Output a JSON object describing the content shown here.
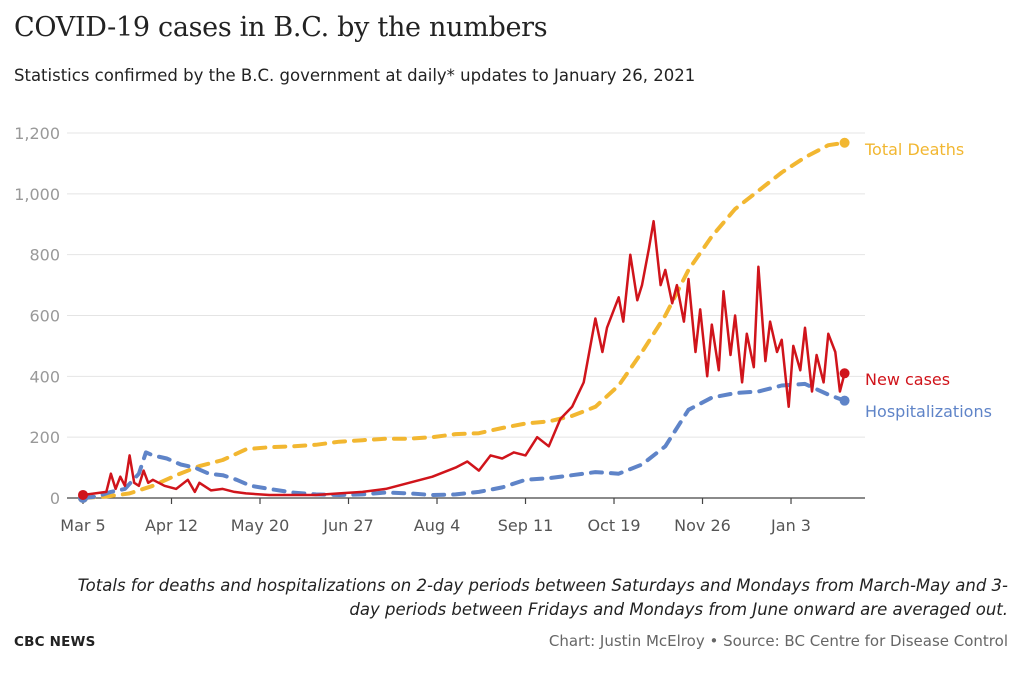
{
  "header": {
    "title": "COVID-19 cases in B.C. by the numbers",
    "subtitle": "Statistics confirmed by the B.C. government at daily* updates to January 26, 2021"
  },
  "footer": {
    "note": "Totals for deaths and hospitalizations on 2-day periods between Saturdays and Mondays from March-May and 3-day periods between Fridays and Mondays from June onward are averaged out.",
    "brand": "CBC NEWS",
    "credit": "Chart: Justin McElroy • Source: BC Centre for Disease Control"
  },
  "colors": {
    "deaths": "#f2b731",
    "cases": "#d0141b",
    "hospitalizations": "#5f84c8",
    "grid": "#e4e4e4",
    "axis_text": "#999999"
  },
  "chart_data": {
    "type": "line",
    "x_axis": {
      "start_date": "Mar 5",
      "end_date": "Jan 26",
      "tick_labels": [
        "Mar 5",
        "Apr 12",
        "May 20",
        "Jun 27",
        "Aug 4",
        "Sep 11",
        "Oct 19",
        "Nov 26",
        "Jan 3"
      ]
    },
    "y_axis": {
      "ylim": [
        0,
        1200
      ],
      "ticks": [
        0,
        200,
        400,
        600,
        800,
        1000,
        1200
      ],
      "tick_labels": [
        "0",
        "200",
        "400",
        "600",
        "800",
        "1,000",
        "1,200"
      ]
    },
    "grid": true,
    "legend": "inline labels at line ends (right)",
    "series": [
      {
        "name": "Total Deaths",
        "style": "dashed",
        "x_day": [
          0,
          10,
          20,
          30,
          40,
          50,
          60,
          70,
          80,
          90,
          100,
          110,
          120,
          130,
          140,
          150,
          160,
          170,
          180,
          190,
          200,
          210,
          220,
          230,
          240,
          250,
          260,
          270,
          280,
          290,
          300,
          310,
          320,
          327
        ],
        "values": [
          0,
          5,
          15,
          40,
          75,
          105,
          125,
          160,
          167,
          170,
          175,
          185,
          190,
          195,
          195,
          200,
          210,
          213,
          230,
          245,
          252,
          270,
          300,
          370,
          480,
          600,
          750,
          860,
          950,
          1010,
          1070,
          1120,
          1160,
          1168
        ]
      },
      {
        "name": "Hospitalizations",
        "style": "dashed",
        "x_day": [
          0,
          6,
          12,
          18,
          24,
          27,
          30,
          36,
          42,
          48,
          54,
          60,
          66,
          72,
          80,
          90,
          100,
          110,
          120,
          130,
          140,
          150,
          160,
          170,
          180,
          190,
          200,
          210,
          220,
          230,
          240,
          250,
          260,
          270,
          280,
          290,
          300,
          310,
          320,
          327
        ],
        "values": [
          0,
          5,
          20,
          30,
          80,
          150,
          140,
          130,
          110,
          100,
          80,
          75,
          60,
          40,
          30,
          18,
          12,
          10,
          12,
          18,
          15,
          10,
          12,
          20,
          35,
          60,
          65,
          75,
          85,
          80,
          110,
          170,
          290,
          330,
          345,
          350,
          370,
          375,
          340,
          320
        ]
      },
      {
        "name": "New cases",
        "style": "solid",
        "x_day": [
          0,
          10,
          12,
          14,
          16,
          18,
          20,
          22,
          24,
          26,
          28,
          30,
          35,
          40,
          45,
          48,
          50,
          55,
          60,
          65,
          70,
          80,
          90,
          100,
          110,
          120,
          130,
          140,
          150,
          160,
          165,
          170,
          175,
          180,
          185,
          190,
          195,
          200,
          205,
          210,
          215,
          220,
          223,
          225,
          228,
          230,
          232,
          235,
          238,
          240,
          243,
          245,
          248,
          250,
          253,
          255,
          258,
          260,
          263,
          265,
          268,
          270,
          273,
          275,
          278,
          280,
          283,
          285,
          288,
          290,
          293,
          295,
          298,
          300,
          303,
          305,
          308,
          310,
          313,
          315,
          318,
          320,
          323,
          325,
          327
        ],
        "values": [
          10,
          20,
          80,
          30,
          70,
          40,
          140,
          50,
          40,
          90,
          50,
          60,
          40,
          30,
          60,
          20,
          50,
          25,
          30,
          20,
          15,
          10,
          10,
          10,
          15,
          20,
          30,
          50,
          70,
          100,
          120,
          90,
          140,
          130,
          150,
          140,
          200,
          170,
          260,
          300,
          380,
          590,
          480,
          560,
          620,
          660,
          580,
          800,
          650,
          700,
          820,
          910,
          700,
          750,
          640,
          700,
          580,
          720,
          480,
          620,
          400,
          570,
          420,
          680,
          470,
          600,
          380,
          540,
          430,
          760,
          450,
          580,
          480,
          520,
          300,
          500,
          420,
          560,
          350,
          470,
          380,
          540,
          480,
          350,
          410
        ]
      }
    ]
  }
}
